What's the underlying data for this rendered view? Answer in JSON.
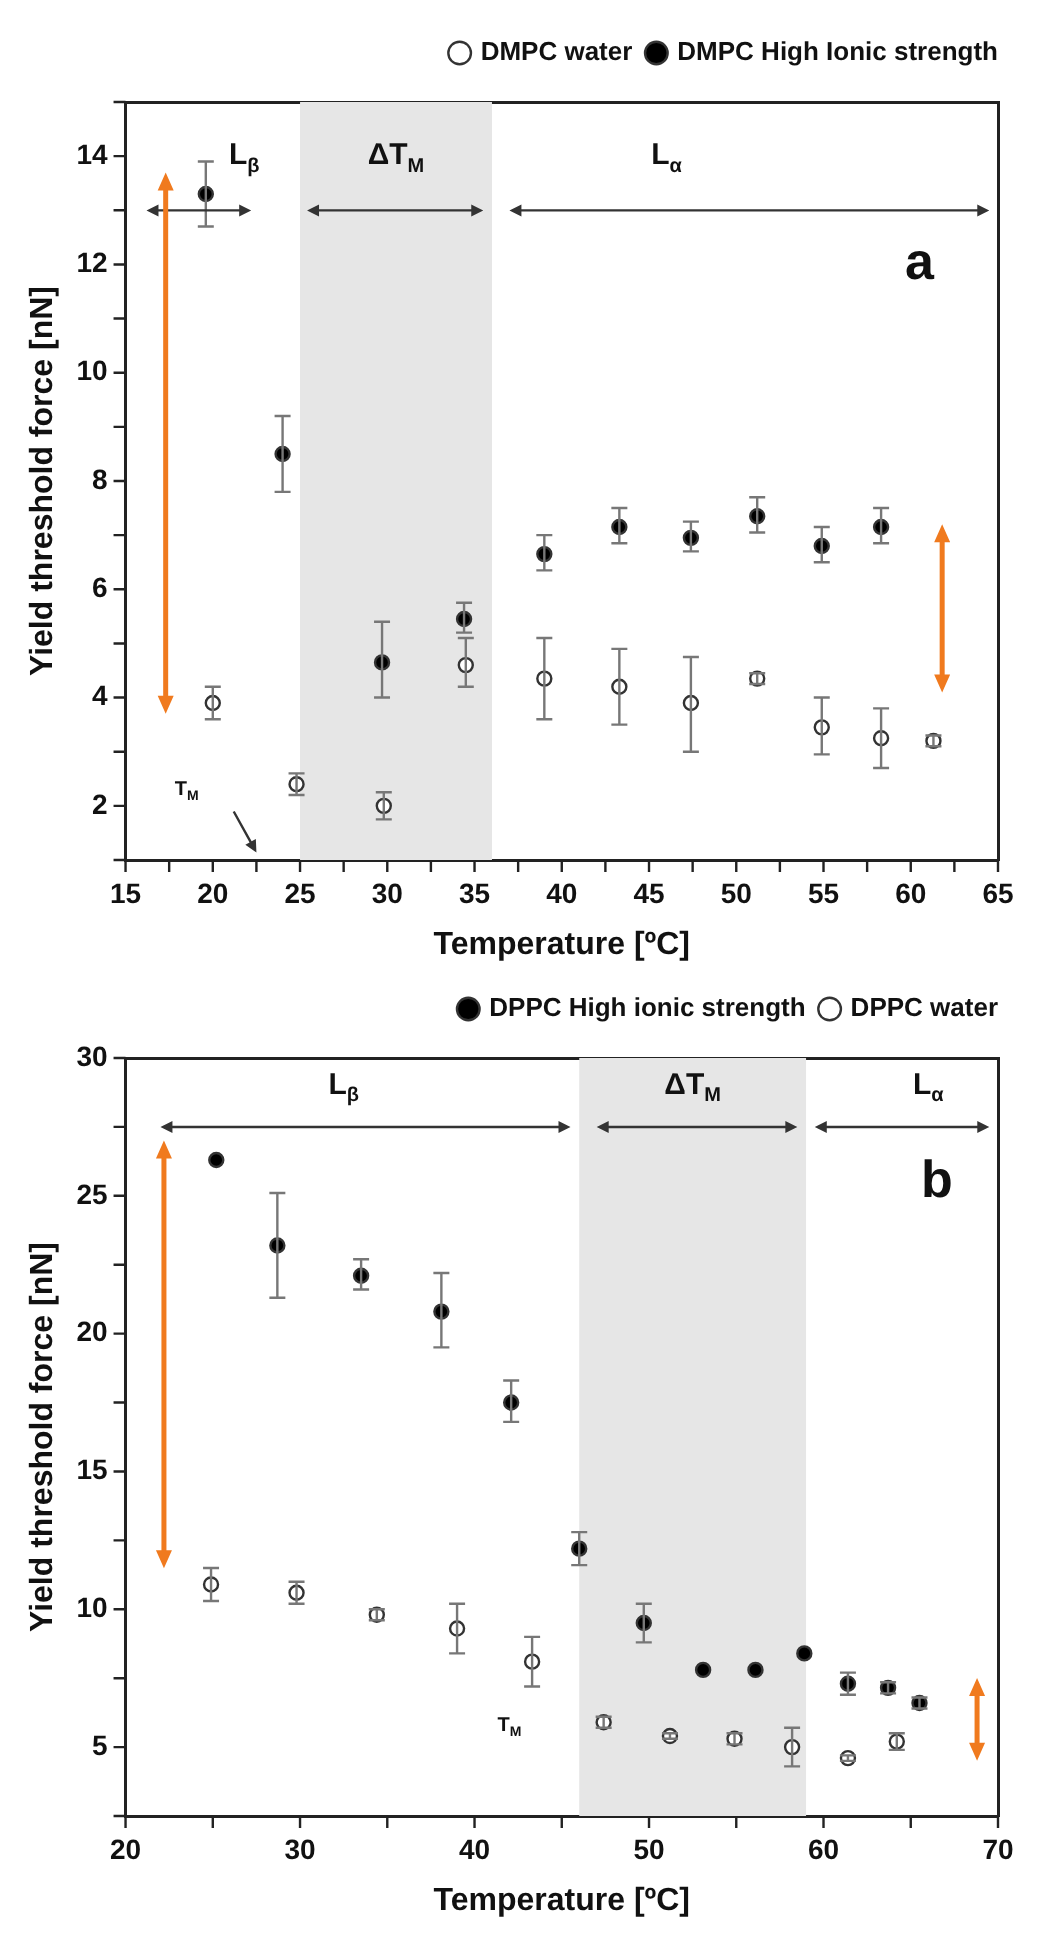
{
  "chart_data": [
    {
      "type": "scatter",
      "xlabel": "Temperature [ºC]",
      "ylabel": "Yield threshold force [nN]",
      "xlim": [
        15,
        65
      ],
      "xticks": [
        15,
        {
          "value": 17.5,
          "label": null
        },
        20,
        {
          "value": 22.5,
          "label": null
        },
        25,
        {
          "value": 27.5,
          "label": null
        },
        30,
        {
          "value": 32.5,
          "label": null
        },
        35,
        {
          "value": 37.5,
          "label": null
        },
        40,
        {
          "value": 42.5,
          "label": null
        },
        45,
        {
          "value": 47.5,
          "label": null
        },
        50,
        {
          "value": 52.5,
          "label": null
        },
        55,
        {
          "value": 57.5,
          "label": null
        },
        60,
        {
          "value": 62.5,
          "label": null
        },
        65
      ],
      "ylim": [
        1,
        15
      ],
      "yticks": [
        {
          "value": 1,
          "label": null
        },
        2,
        {
          "value": 3,
          "label": null
        },
        4,
        {
          "value": 5,
          "label": null
        },
        6,
        {
          "value": 7,
          "label": null
        },
        8,
        {
          "value": 9,
          "label": null
        },
        10,
        {
          "value": 11,
          "label": null
        },
        12,
        {
          "value": 13,
          "label": null
        },
        14,
        {
          "value": 15,
          "label": null
        }
      ],
      "grid": false,
      "legend": "top right",
      "marker": "circle",
      "bands": [
        {
          "axis": "x",
          "from": 25,
          "to": 36,
          "label": "ΔT$_{M}$",
          "color": "#e6e6e6"
        }
      ],
      "annotations": [
        "L$_{β}$",
        "L$_{α}$",
        "a",
        "T$_{M}$"
      ],
      "series": [
        {
          "name": "DMPC water",
          "color": "#ffffff",
          "x": [
            20,
            24.8,
            29.8,
            34.5,
            39,
            43.3,
            47.4,
            51.2,
            54.9,
            58.3,
            61.3
          ],
          "values": [
            3.9,
            2.4,
            2.0,
            4.6,
            4.35,
            4.2,
            3.9,
            4.35,
            3.45,
            3.25,
            3.2
          ],
          "errors": [
            [
              3.6,
              4.2
            ],
            0.2,
            0.25,
            [
              4.2,
              5.1
            ],
            [
              3.6,
              5.1
            ],
            [
              3.5,
              4.9
            ],
            [
              3.0,
              4.75
            ],
            0.1,
            [
              2.95,
              4.0
            ],
            [
              2.7,
              3.8
            ],
            0.1
          ]
        },
        {
          "name": "DMPC High Ionic strength",
          "color": "#000000",
          "x": [
            19.6,
            24,
            29.7,
            34.4,
            39,
            43.3,
            47.4,
            51.2,
            54.9,
            58.3
          ],
          "values": [
            13.3,
            8.5,
            4.65,
            5.45,
            6.65,
            7.15,
            6.95,
            7.35,
            6.8,
            7.15
          ],
          "errors": [
            [
              12.7,
              13.9
            ],
            [
              7.8,
              9.2
            ],
            [
              4.0,
              5.4
            ],
            [
              5.2,
              5.75
            ],
            [
              6.35,
              7.0
            ],
            [
              6.85,
              7.5
            ],
            [
              6.7,
              7.25
            ],
            [
              7.05,
              7.7
            ],
            [
              6.5,
              7.15
            ],
            [
              6.85,
              7.5
            ]
          ]
        }
      ]
    },
    {
      "type": "scatter",
      "xlabel": "Temperature [ºC]",
      "ylabel": "Yield threshold force [nN]",
      "xlim": [
        20,
        70
      ],
      "xticks": [
        20,
        {
          "value": 25,
          "label": null
        },
        30,
        {
          "value": 35,
          "label": null
        },
        40,
        {
          "value": 45,
          "label": null
        },
        50,
        {
          "value": 55,
          "label": null
        },
        60,
        {
          "value": 65,
          "label": null
        },
        70
      ],
      "ylim": [
        2.5,
        30
      ],
      "yticks": [
        {
          "value": 2.5,
          "label": null
        },
        5,
        {
          "value": 7.5,
          "label": null
        },
        10,
        {
          "value": 12.5,
          "label": null
        },
        15,
        {
          "value": 17.5,
          "label": null
        },
        20,
        {
          "value": 22.5,
          "label": null
        },
        25,
        {
          "value": 27.5,
          "label": null
        },
        30
      ],
      "grid": false,
      "legend": "top right",
      "marker": "circle",
      "bands": [
        {
          "axis": "x",
          "from": 46,
          "to": 59,
          "label": "ΔT$_{M}$",
          "color": "#e6e6e6"
        }
      ],
      "annotations": [
        "L$_{β}$",
        "L$_{α}$",
        "b",
        "T$_{M}$"
      ],
      "series": [
        {
          "name": "DPPC High ionic strength",
          "color": "#000000",
          "x": [
            25.2,
            28.7,
            33.5,
            38.1,
            42.1,
            46.0,
            49.7,
            53.1,
            56.1,
            58.9,
            61.4,
            63.7,
            65.5
          ],
          "values": [
            26.3,
            23.2,
            22.1,
            20.8,
            17.5,
            12.2,
            9.5,
            7.8,
            7.8,
            8.4,
            7.3,
            7.15,
            6.6
          ],
          "errors": [
            null,
            [
              21.3,
              25.1
            ],
            [
              21.6,
              22.7
            ],
            [
              19.5,
              22.2
            ],
            [
              16.8,
              18.3
            ],
            [
              11.6,
              12.8
            ],
            [
              8.8,
              10.2
            ],
            null,
            null,
            null,
            [
              6.9,
              7.7
            ],
            0.2,
            0.2
          ]
        },
        {
          "name": "DPPC water",
          "color": "#ffffff",
          "x": [
            24.9,
            29.8,
            34.4,
            39.0,
            43.3,
            47.4,
            51.2,
            54.9,
            58.2,
            61.4,
            64.2
          ],
          "values": [
            10.9,
            10.6,
            9.8,
            9.3,
            8.1,
            5.9,
            5.4,
            5.3,
            5.0,
            4.6,
            5.2
          ],
          "errors": [
            [
              10.3,
              11.5
            ],
            [
              10.2,
              11.0
            ],
            0.2,
            [
              8.4,
              10.2
            ],
            [
              7.2,
              9.0
            ],
            0.2,
            0.1,
            0.2,
            [
              4.3,
              5.7
            ],
            0.1,
            0.3
          ]
        }
      ]
    }
  ]
}
